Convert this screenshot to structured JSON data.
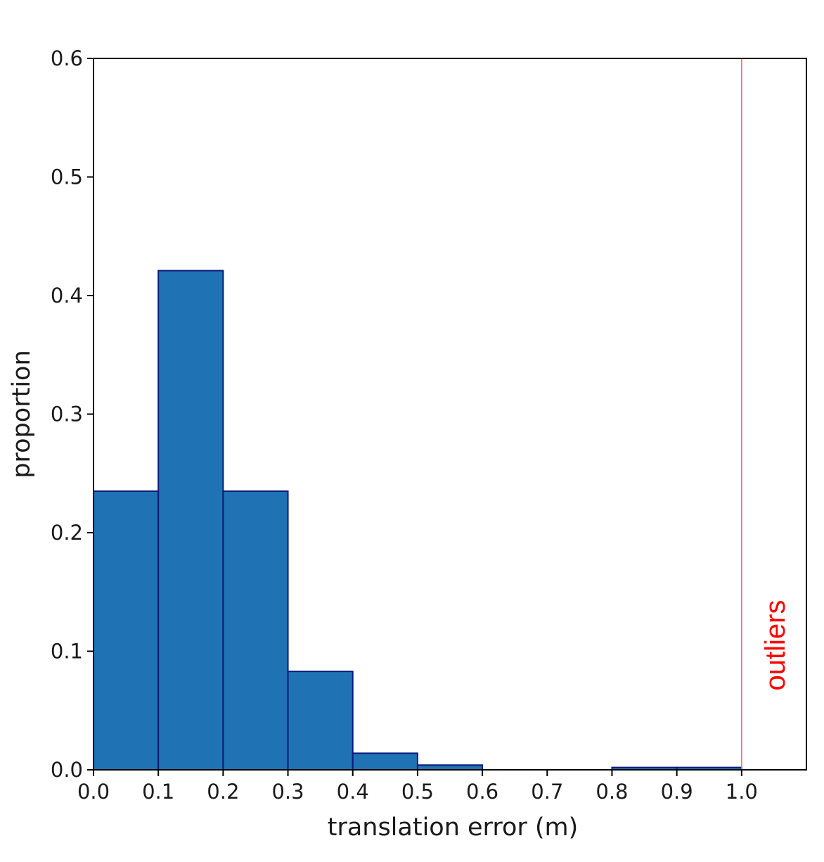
{
  "chart_data": {
    "type": "bar",
    "title": "",
    "xlabel": "translation error (m)",
    "ylabel": "proportion",
    "xlim": [
      0.0,
      1.1
    ],
    "ylim": [
      0.0,
      0.6
    ],
    "x_ticks": [
      "0.0",
      "0.1",
      "0.2",
      "0.3",
      "0.4",
      "0.5",
      "0.6",
      "0.7",
      "0.8",
      "0.9",
      "1.0"
    ],
    "y_ticks": [
      "0.0",
      "0.1",
      "0.2",
      "0.3",
      "0.4",
      "0.5",
      "0.6"
    ],
    "bins": [
      {
        "x0": 0.0,
        "x1": 0.1,
        "value": 0.235
      },
      {
        "x0": 0.1,
        "x1": 0.2,
        "value": 0.421
      },
      {
        "x0": 0.2,
        "x1": 0.3,
        "value": 0.235
      },
      {
        "x0": 0.3,
        "x1": 0.4,
        "value": 0.083
      },
      {
        "x0": 0.4,
        "x1": 0.5,
        "value": 0.014
      },
      {
        "x0": 0.5,
        "x1": 0.6,
        "value": 0.004
      },
      {
        "x0": 0.6,
        "x1": 0.7,
        "value": 0.0
      },
      {
        "x0": 0.7,
        "x1": 0.8,
        "value": 0.0
      },
      {
        "x0": 0.8,
        "x1": 0.9,
        "value": 0.002
      },
      {
        "x0": 0.9,
        "x1": 1.0,
        "value": 0.002
      }
    ],
    "grid": false,
    "bar_color": "#1f73b4",
    "bar_edge_color": "#0d1b7a",
    "threshold_line": {
      "x": 1.0,
      "color": "#ff6666"
    },
    "annotation": {
      "text": "outliers",
      "color": "#ff0000"
    }
  }
}
